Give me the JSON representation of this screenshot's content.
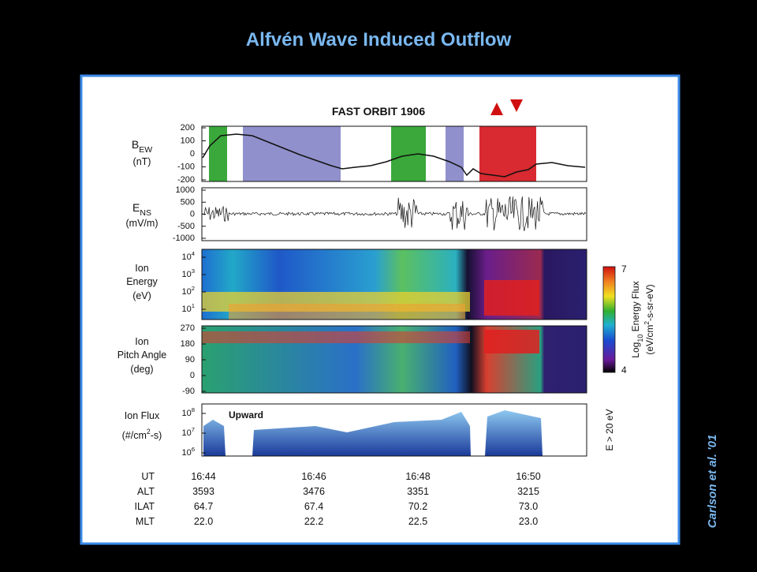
{
  "title": "Alfvén Wave Induced Outflow",
  "credit": "Carlson et al. '01",
  "figure": {
    "title": "FAST ORBIT 1906",
    "panels": [
      {
        "label": [
          [
            {
              "text": "B"
            },
            {
              "sub": "EW"
            }
          ],
          [
            {
              "text": "(nT)"
            }
          ]
        ],
        "ticks": [
          [
            {
              "text": "200"
            }
          ],
          [
            {
              "text": "100"
            }
          ],
          [
            {
              "text": "0"
            }
          ],
          [
            {
              "text": "-100"
            }
          ],
          [
            {
              "text": "-200"
            }
          ]
        ]
      },
      {
        "label": [
          [
            {
              "text": "E"
            },
            {
              "sub": "NS"
            }
          ],
          [
            {
              "text": "(mV/m)"
            }
          ]
        ],
        "ticks": [
          [
            {
              "text": "1000"
            }
          ],
          [
            {
              "text": "500"
            }
          ],
          [
            {
              "text": "0"
            }
          ],
          [
            {
              "text": "-500"
            }
          ],
          [
            {
              "text": "-1000"
            }
          ]
        ]
      },
      {
        "label": [
          [
            {
              "text": "Ion"
            }
          ],
          [
            {
              "text": "Energy"
            }
          ],
          [
            {
              "text": "(eV)"
            }
          ]
        ],
        "ticks": [
          [
            {
              "text": "10"
            },
            {
              "sup": "4"
            }
          ],
          [
            {
              "text": "10"
            },
            {
              "sup": "3"
            }
          ],
          [
            {
              "text": "10"
            },
            {
              "sup": "2"
            }
          ],
          [
            {
              "text": "10"
            },
            {
              "sup": "1"
            }
          ]
        ]
      },
      {
        "label": [
          [
            {
              "text": "Ion"
            }
          ],
          [
            {
              "text": "Pitch Angle"
            }
          ],
          [
            {
              "text": "(deg)"
            }
          ]
        ],
        "ticks": [
          [
            {
              "text": "270"
            }
          ],
          [
            {
              "text": "180"
            }
          ],
          [
            {
              "text": "90"
            }
          ],
          [
            {
              "text": "0"
            }
          ],
          [
            {
              "text": "-90"
            }
          ]
        ]
      },
      {
        "label": [
          [
            {
              "text": "Ion Flux"
            }
          ],
          [
            {
              "text": "(#/cm"
            },
            {
              "sup": "2"
            },
            {
              "text": "-s)"
            }
          ]
        ],
        "ticks": [
          [
            {
              "text": "10"
            },
            {
              "sup": "8"
            }
          ],
          [
            {
              "text": "10"
            },
            {
              "sup": "7"
            }
          ],
          [
            {
              "text": "10"
            },
            {
              "sup": "6"
            }
          ]
        ],
        "annotation": "Upward"
      }
    ],
    "colorbar": {
      "max": "7",
      "min": "4",
      "label": [
        [
          {
            "text": "Log"
          },
          {
            "sub": "10"
          },
          {
            "text": " Energy Flux"
          }
        ],
        [
          {
            "text": "(eV/cm"
          },
          {
            "sup": "2"
          },
          {
            "text": "-s-sr-eV)"
          }
        ]
      ]
    },
    "flux_note": "E > 20 eV",
    "table": [
      [
        "UT",
        "16:44",
        "16:46",
        "16:48",
        "16:50"
      ],
      [
        "ALT",
        "3593",
        "3476",
        "3351",
        "3215"
      ],
      [
        "ILAT",
        "64.7",
        "67.4",
        "70.2",
        "73.0"
      ],
      [
        "MLT",
        "22.0",
        "22.2",
        "22.5",
        "23.0"
      ]
    ]
  }
}
